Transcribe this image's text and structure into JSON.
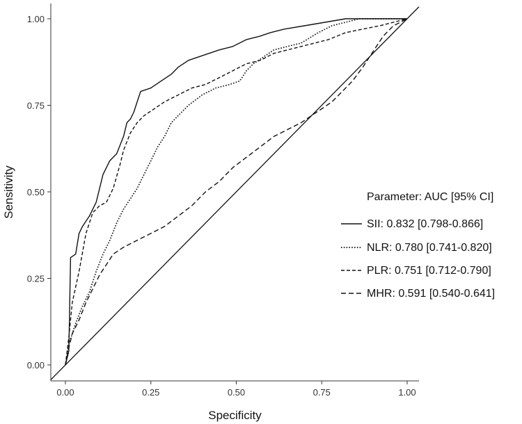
{
  "chart_data": {
    "type": "line",
    "xlabel": "Specificity",
    "ylabel": "Sensitivity",
    "xlim": [
      0,
      1
    ],
    "ylim": [
      0,
      1
    ],
    "x_ticks": [
      "0.00",
      "0.25",
      "0.50",
      "0.75",
      "1.00"
    ],
    "y_ticks": [
      "0.00",
      "0.25",
      "0.50",
      "0.75",
      "1.00"
    ],
    "grid": false,
    "legend": {
      "title": "Parameter: AUC [95% CI]",
      "position": "center-right"
    },
    "reference_line": {
      "name": "diagonal",
      "points": [
        [
          0,
          0
        ],
        [
          1,
          1
        ]
      ]
    },
    "series": [
      {
        "name": "SII",
        "label": "SII: 0.832 [0.798-0.866]",
        "style": "solid",
        "points": [
          [
            0,
            0
          ],
          [
            0.01,
            0.04
          ],
          [
            0.015,
            0.31
          ],
          [
            0.03,
            0.32
          ],
          [
            0.04,
            0.38
          ],
          [
            0.05,
            0.4
          ],
          [
            0.07,
            0.43
          ],
          [
            0.09,
            0.47
          ],
          [
            0.11,
            0.55
          ],
          [
            0.13,
            0.59
          ],
          [
            0.15,
            0.61
          ],
          [
            0.17,
            0.66
          ],
          [
            0.18,
            0.7
          ],
          [
            0.19,
            0.71
          ],
          [
            0.2,
            0.73
          ],
          [
            0.21,
            0.76
          ],
          [
            0.22,
            0.79
          ],
          [
            0.25,
            0.8
          ],
          [
            0.28,
            0.82
          ],
          [
            0.31,
            0.84
          ],
          [
            0.33,
            0.86
          ],
          [
            0.36,
            0.88
          ],
          [
            0.39,
            0.89
          ],
          [
            0.42,
            0.9
          ],
          [
            0.45,
            0.91
          ],
          [
            0.49,
            0.92
          ],
          [
            0.53,
            0.94
          ],
          [
            0.57,
            0.95
          ],
          [
            0.6,
            0.96
          ],
          [
            0.64,
            0.97
          ],
          [
            0.7,
            0.98
          ],
          [
            0.76,
            0.99
          ],
          [
            0.82,
            1.0
          ],
          [
            1.0,
            1.0
          ]
        ]
      },
      {
        "name": "NLR",
        "label": "NLR: 0.780 [0.741-0.820]",
        "style": "dotted",
        "points": [
          [
            0,
            0
          ],
          [
            0.01,
            0.06
          ],
          [
            0.03,
            0.12
          ],
          [
            0.05,
            0.17
          ],
          [
            0.07,
            0.21
          ],
          [
            0.09,
            0.27
          ],
          [
            0.11,
            0.32
          ],
          [
            0.13,
            0.36
          ],
          [
            0.15,
            0.41
          ],
          [
            0.17,
            0.45
          ],
          [
            0.19,
            0.48
          ],
          [
            0.21,
            0.51
          ],
          [
            0.23,
            0.55
          ],
          [
            0.25,
            0.59
          ],
          [
            0.27,
            0.63
          ],
          [
            0.29,
            0.66
          ],
          [
            0.31,
            0.7
          ],
          [
            0.33,
            0.72
          ],
          [
            0.36,
            0.75
          ],
          [
            0.4,
            0.78
          ],
          [
            0.44,
            0.8
          ],
          [
            0.48,
            0.81
          ],
          [
            0.51,
            0.82
          ],
          [
            0.53,
            0.85
          ],
          [
            0.55,
            0.87
          ],
          [
            0.58,
            0.89
          ],
          [
            0.61,
            0.91
          ],
          [
            0.65,
            0.92
          ],
          [
            0.69,
            0.93
          ],
          [
            0.74,
            0.96
          ],
          [
            0.78,
            0.98
          ],
          [
            0.82,
            0.99
          ],
          [
            0.86,
            1.0
          ],
          [
            1.0,
            1.0
          ]
        ]
      },
      {
        "name": "PLR",
        "label": "PLR: 0.751 [0.712-0.790]",
        "style": "dashed",
        "points": [
          [
            0,
            0
          ],
          [
            0.01,
            0.08
          ],
          [
            0.02,
            0.18
          ],
          [
            0.04,
            0.27
          ],
          [
            0.06,
            0.38
          ],
          [
            0.08,
            0.44
          ],
          [
            0.1,
            0.46
          ],
          [
            0.12,
            0.47
          ],
          [
            0.14,
            0.51
          ],
          [
            0.16,
            0.58
          ],
          [
            0.17,
            0.62
          ],
          [
            0.19,
            0.67
          ],
          [
            0.21,
            0.7
          ],
          [
            0.23,
            0.72
          ],
          [
            0.26,
            0.74
          ],
          [
            0.29,
            0.76
          ],
          [
            0.33,
            0.78
          ],
          [
            0.37,
            0.8
          ],
          [
            0.41,
            0.81
          ],
          [
            0.45,
            0.83
          ],
          [
            0.49,
            0.85
          ],
          [
            0.53,
            0.87
          ],
          [
            0.57,
            0.88
          ],
          [
            0.61,
            0.9
          ],
          [
            0.65,
            0.91
          ],
          [
            0.69,
            0.92
          ],
          [
            0.73,
            0.93
          ],
          [
            0.77,
            0.94
          ],
          [
            0.82,
            0.96
          ],
          [
            0.87,
            0.97
          ],
          [
            0.92,
            0.98
          ],
          [
            0.96,
            0.99
          ],
          [
            1.0,
            1.0
          ]
        ]
      },
      {
        "name": "MHR",
        "label": "MHR: 0.591 [0.540-0.641]",
        "style": "longdash",
        "points": [
          [
            0,
            0
          ],
          [
            0.01,
            0.05
          ],
          [
            0.02,
            0.09
          ],
          [
            0.04,
            0.13
          ],
          [
            0.06,
            0.18
          ],
          [
            0.08,
            0.22
          ],
          [
            0.1,
            0.26
          ],
          [
            0.12,
            0.29
          ],
          [
            0.14,
            0.32
          ],
          [
            0.17,
            0.34
          ],
          [
            0.21,
            0.36
          ],
          [
            0.25,
            0.38
          ],
          [
            0.29,
            0.4
          ],
          [
            0.33,
            0.43
          ],
          [
            0.37,
            0.46
          ],
          [
            0.41,
            0.5
          ],
          [
            0.45,
            0.53
          ],
          [
            0.49,
            0.57
          ],
          [
            0.53,
            0.6
          ],
          [
            0.57,
            0.63
          ],
          [
            0.61,
            0.66
          ],
          [
            0.65,
            0.68
          ],
          [
            0.69,
            0.7
          ],
          [
            0.72,
            0.72
          ],
          [
            0.75,
            0.74
          ],
          [
            0.78,
            0.76
          ],
          [
            0.81,
            0.79
          ],
          [
            0.84,
            0.82
          ],
          [
            0.87,
            0.86
          ],
          [
            0.89,
            0.89
          ],
          [
            0.91,
            0.92
          ],
          [
            0.93,
            0.95
          ],
          [
            0.96,
            0.98
          ],
          [
            1.0,
            1.0
          ]
        ]
      }
    ]
  }
}
